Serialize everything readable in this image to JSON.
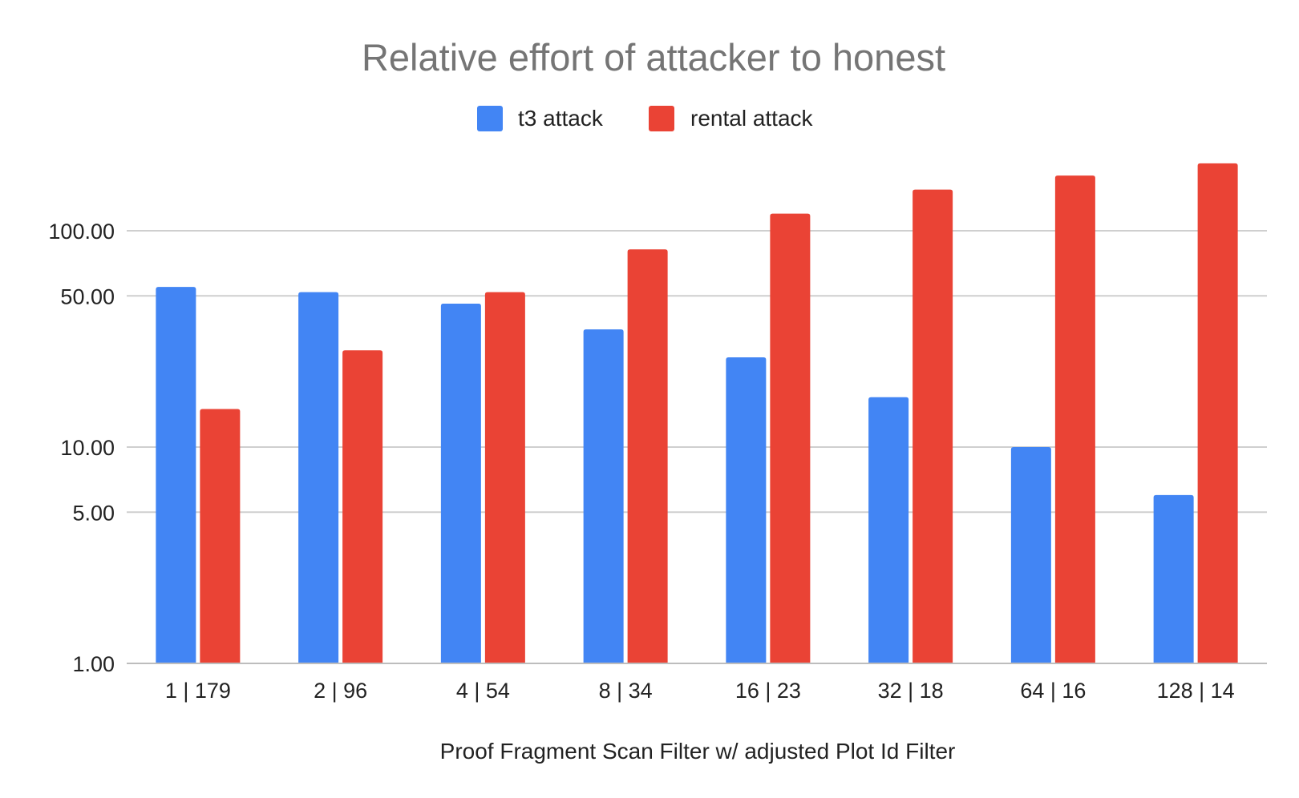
{
  "chart_data": {
    "type": "bar",
    "title": "Relative effort of attacker to honest",
    "xlabel": "Proof Fragment Scan Filter w/ adjusted Plot Id Filter",
    "ylabel": "",
    "yscale": "log",
    "ylim": [
      1,
      240
    ],
    "yticks": [
      1,
      5,
      10,
      50,
      100
    ],
    "ytick_labels": [
      "1.00",
      "5.00",
      "10.00",
      "50.00",
      "100.00"
    ],
    "grid": true,
    "legend_position": "top",
    "categories": [
      "1 | 179",
      "2 | 96",
      "4 | 54",
      "8 | 34",
      "16 | 23",
      "32 | 18",
      "64 | 16",
      "128 | 14"
    ],
    "series": [
      {
        "name": "t3 attack",
        "color": "#4285F4",
        "values": [
          55,
          52,
          46,
          35,
          26,
          17,
          10,
          6
        ]
      },
      {
        "name": "rental attack",
        "color": "#EA4335",
        "values": [
          15,
          28,
          52,
          82,
          120,
          155,
          180,
          205
        ]
      }
    ]
  }
}
